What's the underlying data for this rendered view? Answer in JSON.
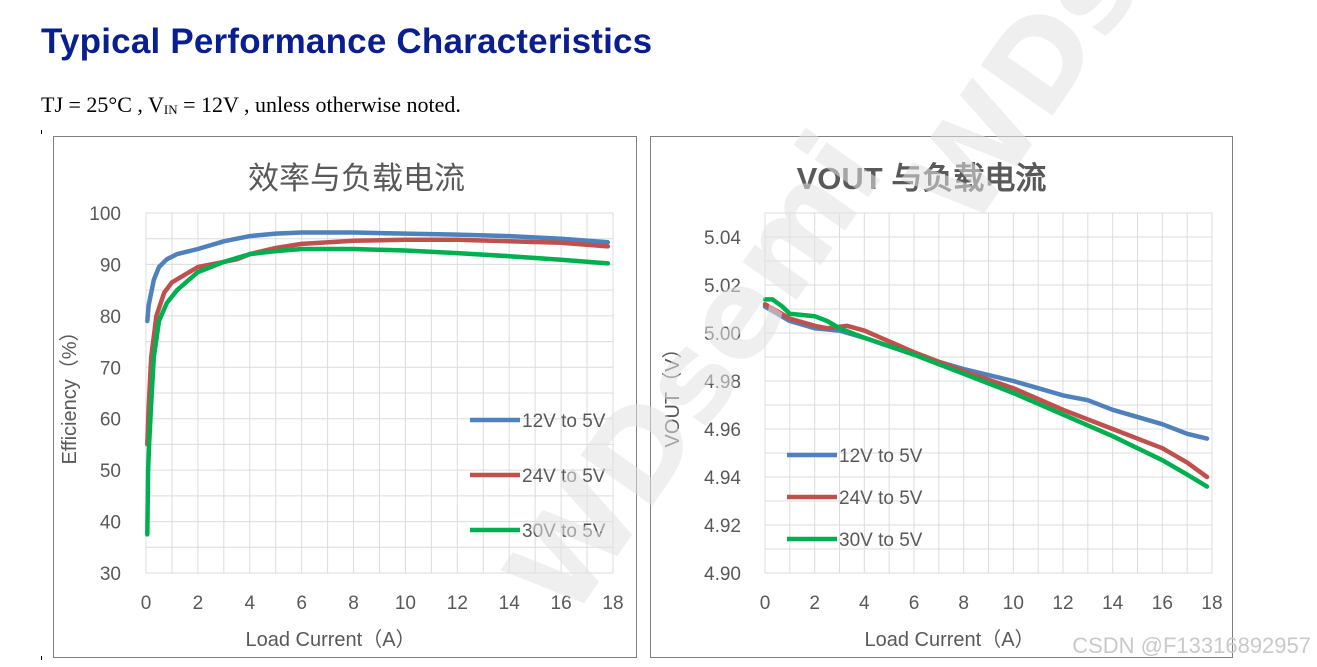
{
  "page": {
    "title": "Typical Performance Characteristics",
    "subtitle_part1": "TJ = 25°C , V",
    "subtitle_sub": "IN",
    "subtitle_part2": " = 12V , unless otherwise noted.",
    "watermark": "WDsemi",
    "csdn_watermark": "CSDN @F13316892957"
  },
  "chart_data": [
    {
      "type": "line",
      "title": "效率与负载电流",
      "xlabel": "Load Current（A）",
      "ylabel": "Efficiency（%）",
      "xlim": [
        0,
        18
      ],
      "ylim": [
        30,
        100
      ],
      "xticks": [
        0,
        2,
        4,
        6,
        8,
        10,
        12,
        14,
        16,
        18
      ],
      "yticks": [
        30,
        40,
        50,
        60,
        70,
        80,
        90,
        100
      ],
      "x_minor_step": 1,
      "y_minor_step": 5,
      "grid": true,
      "legend_position": "right",
      "series": [
        {
          "name": "12V to 5V",
          "color": "#4f81bd",
          "points": [
            [
              0.05,
              79
            ],
            [
              0.1,
              82
            ],
            [
              0.3,
              87
            ],
            [
              0.5,
              89.5
            ],
            [
              0.8,
              91
            ],
            [
              1.2,
              92
            ],
            [
              2,
              93
            ],
            [
              3,
              94.5
            ],
            [
              4,
              95.5
            ],
            [
              5,
              96
            ],
            [
              6,
              96.2
            ],
            [
              8,
              96.2
            ],
            [
              10,
              96
            ],
            [
              12,
              95.8
            ],
            [
              14,
              95.5
            ],
            [
              16,
              95
            ],
            [
              17.8,
              94.3
            ]
          ]
        },
        {
          "name": "24V to 5V",
          "color": "#c0504d",
          "points": [
            [
              0.05,
              55
            ],
            [
              0.1,
              62
            ],
            [
              0.2,
              72
            ],
            [
              0.4,
              80
            ],
            [
              0.7,
              84.5
            ],
            [
              1,
              86.5
            ],
            [
              1.5,
              88
            ],
            [
              2,
              89.5
            ],
            [
              3,
              90.5
            ],
            [
              3.5,
              91
            ],
            [
              4,
              92
            ],
            [
              5,
              93.2
            ],
            [
              6,
              94
            ],
            [
              8,
              94.6
            ],
            [
              10,
              94.8
            ],
            [
              12,
              94.8
            ],
            [
              14,
              94.5
            ],
            [
              16,
              94.2
            ],
            [
              17.8,
              93.5
            ]
          ]
        },
        {
          "name": "30V to 5V",
          "color": "#00b050",
          "points": [
            [
              0.05,
              37.5
            ],
            [
              0.08,
              50
            ],
            [
              0.12,
              55
            ],
            [
              0.2,
              63
            ],
            [
              0.3,
              72
            ],
            [
              0.5,
              79
            ],
            [
              0.8,
              82.5
            ],
            [
              1.2,
              85
            ],
            [
              2,
              88.5
            ],
            [
              3,
              90.5
            ],
            [
              4,
              92
            ],
            [
              5,
              92.6
            ],
            [
              6,
              93
            ],
            [
              8,
              93
            ],
            [
              10,
              92.7
            ],
            [
              12,
              92.2
            ],
            [
              14,
              91.6
            ],
            [
              16,
              90.9
            ],
            [
              17.8,
              90.2
            ]
          ]
        }
      ]
    },
    {
      "type": "line",
      "title": "VOUT 与负载电流",
      "xlabel": "Load Current（A）",
      "ylabel": "VOUT（V）",
      "xlim": [
        0,
        18
      ],
      "ylim": [
        4.9,
        5.05
      ],
      "xticks": [
        0,
        2,
        4,
        6,
        8,
        10,
        12,
        14,
        16,
        18
      ],
      "yticks": [
        4.9,
        4.92,
        4.94,
        4.96,
        4.98,
        5.0,
        5.02,
        5.04
      ],
      "y_tick_decimals": 2,
      "x_minor_step": 1,
      "y_minor_step": 0.01,
      "grid": true,
      "legend_position": "bottom-left",
      "series": [
        {
          "name": "12V to 5V",
          "color": "#4f81bd",
          "points": [
            [
              0,
              5.011
            ],
            [
              1,
              5.005
            ],
            [
              2,
              5.002
            ],
            [
              3,
              5.001
            ],
            [
              4,
              4.998
            ],
            [
              6,
              4.991
            ],
            [
              8,
              4.985
            ],
            [
              10,
              4.98
            ],
            [
              11,
              4.977
            ],
            [
              12,
              4.974
            ],
            [
              13,
              4.972
            ],
            [
              14,
              4.968
            ],
            [
              16,
              4.962
            ],
            [
              17,
              4.958
            ],
            [
              17.8,
              4.956
            ]
          ]
        },
        {
          "name": "24V to 5V",
          "color": "#c0504d",
          "points": [
            [
              0,
              5.012
            ],
            [
              1,
              5.006
            ],
            [
              2,
              5.003
            ],
            [
              2.5,
              5.002
            ],
            [
              3.3,
              5.003
            ],
            [
              4,
              5.001
            ],
            [
              6,
              4.992
            ],
            [
              8,
              4.984
            ],
            [
              10,
              4.977
            ],
            [
              12,
              4.968
            ],
            [
              14,
              4.96
            ],
            [
              16,
              4.952
            ],
            [
              17,
              4.946
            ],
            [
              17.8,
              4.94
            ]
          ]
        },
        {
          "name": "30V to 5V",
          "color": "#00b050",
          "points": [
            [
              0,
              5.014
            ],
            [
              0.3,
              5.014
            ],
            [
              0.7,
              5.011
            ],
            [
              1,
              5.008
            ],
            [
              2,
              5.007
            ],
            [
              2.5,
              5.005
            ],
            [
              3,
              5.002
            ],
            [
              4,
              4.998
            ],
            [
              6,
              4.991
            ],
            [
              8,
              4.983
            ],
            [
              10,
              4.975
            ],
            [
              12,
              4.966
            ],
            [
              14,
              4.957
            ],
            [
              16,
              4.947
            ],
            [
              17,
              4.941
            ],
            [
              17.8,
              4.936
            ]
          ]
        }
      ]
    }
  ]
}
